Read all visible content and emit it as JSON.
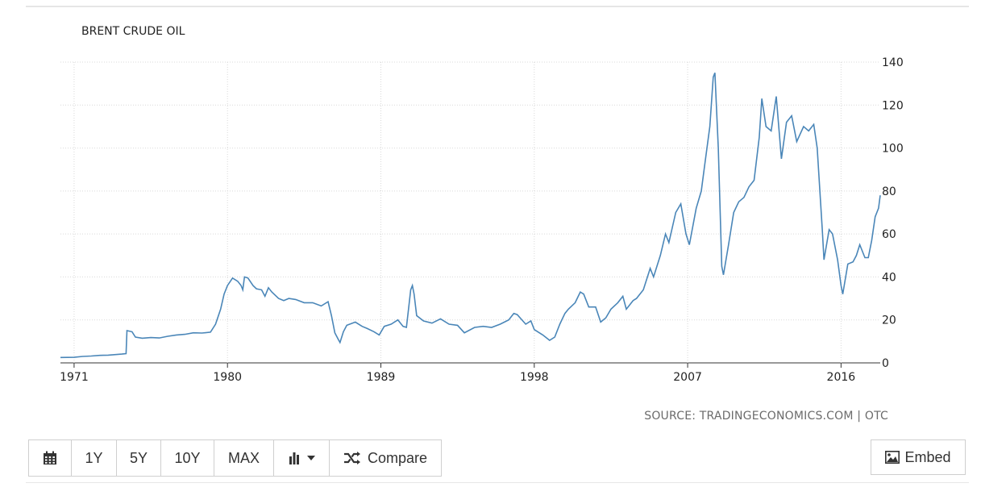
{
  "toolbar": {
    "calendar_icon": "calendar-icon",
    "btn_1y": "1Y",
    "btn_5y": "5Y",
    "btn_10y": "10Y",
    "btn_max": "MAX",
    "chart_type_icon": "bar-chart-icon",
    "compare_icon": "shuffle-icon",
    "compare_label": "Compare",
    "embed_icon": "image-icon",
    "embed_label": "Embed"
  },
  "source": "SOURCE: TRADINGECONOMICS.COM | OTC",
  "colors": {
    "line": "#4a86b8",
    "grid": "#d9d9d9",
    "text": "#222222",
    "source": "#6b6b6b"
  },
  "chart_data": {
    "type": "line",
    "title": "BRENT CRUDE OIL",
    "xlabel": "",
    "ylabel": "",
    "ylim": [
      0,
      140
    ],
    "xlim": [
      1970.2,
      2018.3
    ],
    "yticks": [
      0,
      20,
      40,
      60,
      80,
      100,
      120,
      140
    ],
    "xticks": [
      1971,
      1980,
      1989,
      1998,
      2007,
      2016
    ],
    "y_axis_side": "right",
    "grid": true,
    "series": [
      {
        "name": "",
        "points": [
          [
            1970.2,
            2.5
          ],
          [
            1971.0,
            2.6
          ],
          [
            1971.5,
            3.0
          ],
          [
            1972.0,
            3.2
          ],
          [
            1972.5,
            3.5
          ],
          [
            1973.0,
            3.6
          ],
          [
            1973.8,
            4.1
          ],
          [
            1974.05,
            4.3
          ],
          [
            1974.1,
            15.0
          ],
          [
            1974.4,
            14.5
          ],
          [
            1974.6,
            12.0
          ],
          [
            1975.0,
            11.5
          ],
          [
            1975.5,
            11.8
          ],
          [
            1976.0,
            11.6
          ],
          [
            1976.5,
            12.4
          ],
          [
            1977.0,
            13.0
          ],
          [
            1977.5,
            13.3
          ],
          [
            1978.0,
            14.0
          ],
          [
            1978.5,
            13.9
          ],
          [
            1979.0,
            14.3
          ],
          [
            1979.3,
            18.0
          ],
          [
            1979.6,
            25.0
          ],
          [
            1979.8,
            32.0
          ],
          [
            1980.0,
            36.0
          ],
          [
            1980.3,
            39.5
          ],
          [
            1980.6,
            38.0
          ],
          [
            1980.8,
            36.0
          ],
          [
            1980.9,
            34.0
          ],
          [
            1981.0,
            40.0
          ],
          [
            1981.2,
            39.5
          ],
          [
            1981.5,
            36.0
          ],
          [
            1981.7,
            34.5
          ],
          [
            1982.0,
            34.0
          ],
          [
            1982.2,
            31.0
          ],
          [
            1982.4,
            35.0
          ],
          [
            1982.6,
            33.0
          ],
          [
            1983.0,
            30.0
          ],
          [
            1983.3,
            29.0
          ],
          [
            1983.6,
            30.0
          ],
          [
            1984.0,
            29.5
          ],
          [
            1984.5,
            28.0
          ],
          [
            1985.0,
            28.0
          ],
          [
            1985.5,
            26.5
          ],
          [
            1985.9,
            28.5
          ],
          [
            1986.1,
            22.0
          ],
          [
            1986.3,
            14.0
          ],
          [
            1986.5,
            11.0
          ],
          [
            1986.6,
            9.5
          ],
          [
            1986.8,
            14.5
          ],
          [
            1987.0,
            17.5
          ],
          [
            1987.5,
            19.0
          ],
          [
            1987.9,
            17.0
          ],
          [
            1988.2,
            16.0
          ],
          [
            1988.6,
            14.5
          ],
          [
            1988.9,
            13.0
          ],
          [
            1989.2,
            17.0
          ],
          [
            1989.6,
            18.0
          ],
          [
            1990.0,
            20.0
          ],
          [
            1990.3,
            17.0
          ],
          [
            1990.5,
            16.5
          ],
          [
            1990.65,
            27.0
          ],
          [
            1990.75,
            34.0
          ],
          [
            1990.85,
            36.0
          ],
          [
            1990.95,
            32.0
          ],
          [
            1991.1,
            22.0
          ],
          [
            1991.5,
            19.5
          ],
          [
            1992.0,
            18.5
          ],
          [
            1992.5,
            20.5
          ],
          [
            1993.0,
            18.0
          ],
          [
            1993.5,
            17.5
          ],
          [
            1993.9,
            14.0
          ],
          [
            1994.5,
            16.5
          ],
          [
            1995.0,
            17.0
          ],
          [
            1995.5,
            16.5
          ],
          [
            1996.0,
            18.0
          ],
          [
            1996.5,
            20.0
          ],
          [
            1996.8,
            23.0
          ],
          [
            1997.0,
            22.5
          ],
          [
            1997.5,
            18.0
          ],
          [
            1997.8,
            19.5
          ],
          [
            1998.0,
            15.5
          ],
          [
            1998.5,
            13.0
          ],
          [
            1998.9,
            10.5
          ],
          [
            1999.2,
            12.0
          ],
          [
            1999.5,
            18.0
          ],
          [
            1999.8,
            23.0
          ],
          [
            2000.0,
            25.0
          ],
          [
            2000.4,
            28.0
          ],
          [
            2000.7,
            33.0
          ],
          [
            2000.9,
            32.0
          ],
          [
            2001.2,
            26.0
          ],
          [
            2001.6,
            26.0
          ],
          [
            2001.9,
            19.0
          ],
          [
            2002.2,
            21.0
          ],
          [
            2002.5,
            25.0
          ],
          [
            2002.9,
            28.0
          ],
          [
            2003.2,
            31.0
          ],
          [
            2003.4,
            25.0
          ],
          [
            2003.8,
            29.0
          ],
          [
            2004.0,
            30.0
          ],
          [
            2004.4,
            34.0
          ],
          [
            2004.8,
            44.0
          ],
          [
            2005.0,
            40.0
          ],
          [
            2005.4,
            50.0
          ],
          [
            2005.7,
            60.0
          ],
          [
            2005.9,
            56.0
          ],
          [
            2006.3,
            70.0
          ],
          [
            2006.6,
            74.0
          ],
          [
            2006.9,
            60.0
          ],
          [
            2007.1,
            55.0
          ],
          [
            2007.5,
            72.0
          ],
          [
            2007.8,
            80.0
          ],
          [
            2008.0,
            92.0
          ],
          [
            2008.3,
            110.0
          ],
          [
            2008.5,
            133.0
          ],
          [
            2008.6,
            135.0
          ],
          [
            2008.8,
            100.0
          ],
          [
            2009.0,
            45.0
          ],
          [
            2009.1,
            41.0
          ],
          [
            2009.4,
            55.0
          ],
          [
            2009.7,
            70.0
          ],
          [
            2010.0,
            75.0
          ],
          [
            2010.3,
            77.0
          ],
          [
            2010.6,
            82.0
          ],
          [
            2010.9,
            85.0
          ],
          [
            2011.2,
            105.0
          ],
          [
            2011.35,
            123.0
          ],
          [
            2011.6,
            110.0
          ],
          [
            2011.9,
            108.0
          ],
          [
            2012.2,
            124.0
          ],
          [
            2012.5,
            95.0
          ],
          [
            2012.8,
            112.0
          ],
          [
            2013.1,
            115.0
          ],
          [
            2013.4,
            103.0
          ],
          [
            2013.8,
            110.0
          ],
          [
            2014.1,
            108.0
          ],
          [
            2014.4,
            111.0
          ],
          [
            2014.6,
            100.0
          ],
          [
            2014.9,
            62.0
          ],
          [
            2015.0,
            48.0
          ],
          [
            2015.3,
            62.0
          ],
          [
            2015.5,
            60.0
          ],
          [
            2015.8,
            48.0
          ],
          [
            2016.0,
            36.0
          ],
          [
            2016.1,
            32.0
          ],
          [
            2016.4,
            46.0
          ],
          [
            2016.7,
            47.0
          ],
          [
            2016.9,
            50.0
          ],
          [
            2017.1,
            55.0
          ],
          [
            2017.4,
            49.0
          ],
          [
            2017.6,
            49.0
          ],
          [
            2017.8,
            57.0
          ],
          [
            2018.0,
            68.0
          ],
          [
            2018.2,
            72.0
          ],
          [
            2018.3,
            78.0
          ]
        ]
      }
    ]
  }
}
